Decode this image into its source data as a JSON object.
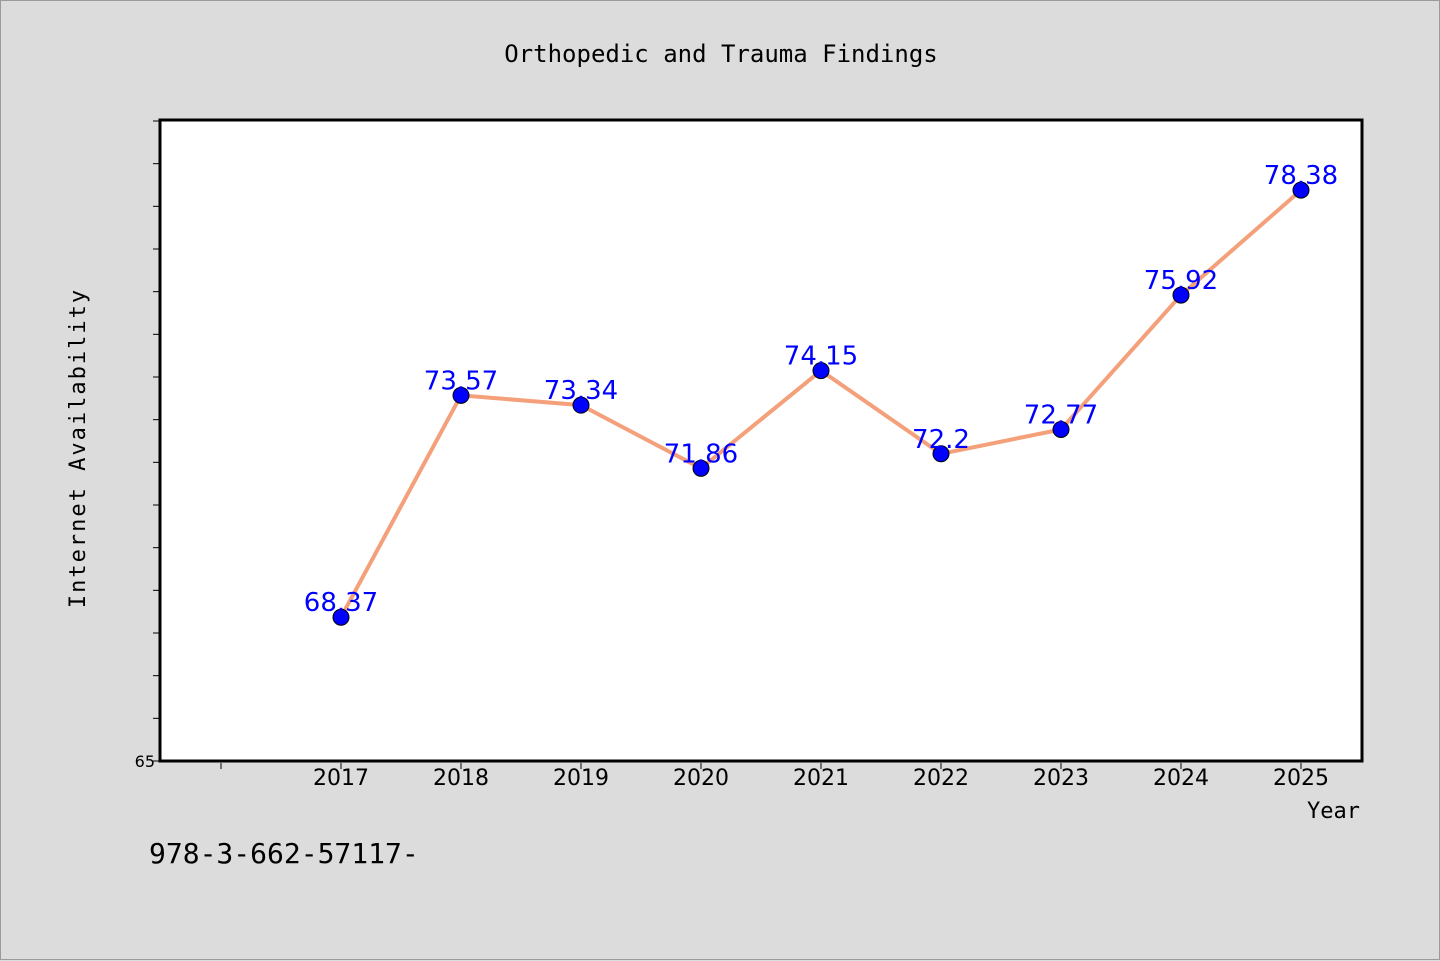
{
  "chart_data": {
    "type": "line",
    "title": "Orthopedic and Trauma Findings",
    "xlabel": "Year",
    "ylabel": "Internet Availability",
    "categories": [
      "2017",
      "2018",
      "2019",
      "2020",
      "2021",
      "2022",
      "2023",
      "2024",
      "2025"
    ],
    "series": [
      {
        "values": [
          68.37,
          73.57,
          73.34,
          71.86,
          74.15,
          72.2,
          72.77,
          75.92,
          78.38
        ]
      }
    ],
    "data_labels": [
      "68.37",
      "73.57",
      "73.34",
      "71.86",
      "74.15",
      "72.2",
      "72.77",
      "75.92",
      "78.38"
    ],
    "ylim": [
      65,
      80
    ],
    "y_tick_step": 1,
    "y_tick_labels": [
      "65"
    ],
    "grid": false,
    "line_color": "#f4a07a",
    "marker_color": "#0000ff",
    "label_color": "#0000ff"
  },
  "footer_text": "978-3-662-57117-"
}
